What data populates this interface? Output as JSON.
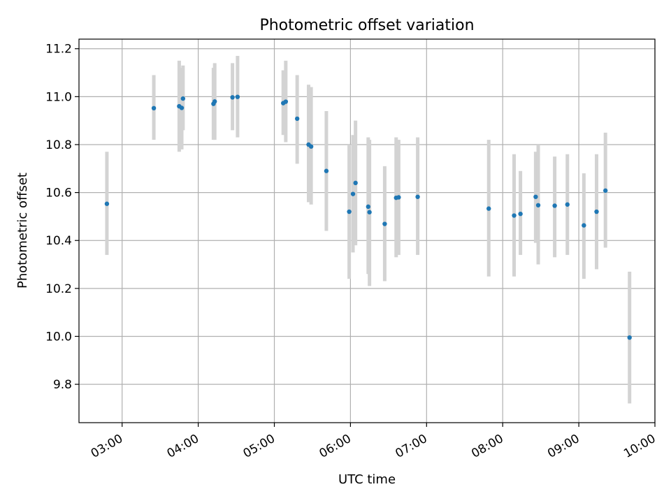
{
  "chart_data": {
    "type": "scatter",
    "title": "Photometric offset variation",
    "xlabel": "UTC time",
    "ylabel": "Photometric offset",
    "x_axis": {
      "kind": "time",
      "range": [
        "02:26",
        "10:00"
      ],
      "ticks": [
        "03:00",
        "04:00",
        "05:00",
        "06:00",
        "07:00",
        "08:00",
        "09:00",
        "10:00"
      ]
    },
    "y_axis": {
      "range": [
        9.64,
        11.24
      ],
      "ticks": [
        9.8,
        10.0,
        10.2,
        10.4,
        10.6,
        10.8,
        11.0,
        11.2
      ],
      "tick_labels": [
        "9.8",
        "10.0",
        "10.2",
        "10.4",
        "10.6",
        "10.8",
        "11.0",
        "11.2"
      ]
    },
    "grid": true,
    "marker_color": "#1f77b4",
    "errorbar_color": "#d3d3d3",
    "series": [
      {
        "points": [
          {
            "x": "02:48",
            "y": 10.553,
            "lo": 10.34,
            "hi": 10.77
          },
          {
            "x": "03:25",
            "y": 10.952,
            "lo": 10.82,
            "hi": 11.09
          },
          {
            "x": "03:45",
            "y": 10.96,
            "lo": 10.77,
            "hi": 11.15
          },
          {
            "x": "03:47",
            "y": 10.953,
            "lo": 10.78,
            "hi": 11.12
          },
          {
            "x": "03:48",
            "y": 10.992,
            "lo": 10.86,
            "hi": 11.13
          },
          {
            "x": "04:12",
            "y": 10.97,
            "lo": 10.82,
            "hi": 11.12
          },
          {
            "x": "04:13",
            "y": 10.98,
            "lo": 10.82,
            "hi": 11.14
          },
          {
            "x": "04:27",
            "y": 10.997,
            "lo": 10.86,
            "hi": 11.14
          },
          {
            "x": "04:31",
            "y": 10.999,
            "lo": 10.83,
            "hi": 11.17
          },
          {
            "x": "05:07",
            "y": 10.973,
            "lo": 10.84,
            "hi": 11.11
          },
          {
            "x": "05:09",
            "y": 10.979,
            "lo": 10.81,
            "hi": 11.15
          },
          {
            "x": "05:18",
            "y": 10.908,
            "lo": 10.72,
            "hi": 11.09
          },
          {
            "x": "05:27",
            "y": 10.8,
            "lo": 10.56,
            "hi": 11.05
          },
          {
            "x": "05:29",
            "y": 10.792,
            "lo": 10.55,
            "hi": 11.04
          },
          {
            "x": "05:41",
            "y": 10.69,
            "lo": 10.44,
            "hi": 10.94
          },
          {
            "x": "05:59",
            "y": 10.52,
            "lo": 10.24,
            "hi": 10.8
          },
          {
            "x": "06:02",
            "y": 10.594,
            "lo": 10.35,
            "hi": 10.84
          },
          {
            "x": "06:04",
            "y": 10.64,
            "lo": 10.38,
            "hi": 10.9
          },
          {
            "x": "06:14",
            "y": 10.541,
            "lo": 10.26,
            "hi": 10.83
          },
          {
            "x": "06:15",
            "y": 10.518,
            "lo": 10.21,
            "hi": 10.82
          },
          {
            "x": "06:27",
            "y": 10.469,
            "lo": 10.23,
            "hi": 10.71
          },
          {
            "x": "06:36",
            "y": 10.578,
            "lo": 10.33,
            "hi": 10.83
          },
          {
            "x": "06:38",
            "y": 10.58,
            "lo": 10.34,
            "hi": 10.82
          },
          {
            "x": "06:53",
            "y": 10.582,
            "lo": 10.34,
            "hi": 10.83
          },
          {
            "x": "07:49",
            "y": 10.533,
            "lo": 10.25,
            "hi": 10.82
          },
          {
            "x": "08:09",
            "y": 10.504,
            "lo": 10.25,
            "hi": 10.76
          },
          {
            "x": "08:14",
            "y": 10.511,
            "lo": 10.34,
            "hi": 10.69
          },
          {
            "x": "08:26",
            "y": 10.582,
            "lo": 10.39,
            "hi": 10.77
          },
          {
            "x": "08:28",
            "y": 10.547,
            "lo": 10.3,
            "hi": 10.8
          },
          {
            "x": "08:41",
            "y": 10.545,
            "lo": 10.33,
            "hi": 10.75
          },
          {
            "x": "08:51",
            "y": 10.55,
            "lo": 10.34,
            "hi": 10.76
          },
          {
            "x": "09:04",
            "y": 10.463,
            "lo": 10.24,
            "hi": 10.68
          },
          {
            "x": "09:14",
            "y": 10.52,
            "lo": 10.28,
            "hi": 10.76
          },
          {
            "x": "09:21",
            "y": 10.608,
            "lo": 10.37,
            "hi": 10.85
          },
          {
            "x": "09:40",
            "y": 9.995,
            "lo": 9.72,
            "hi": 10.27
          }
        ]
      }
    ]
  }
}
